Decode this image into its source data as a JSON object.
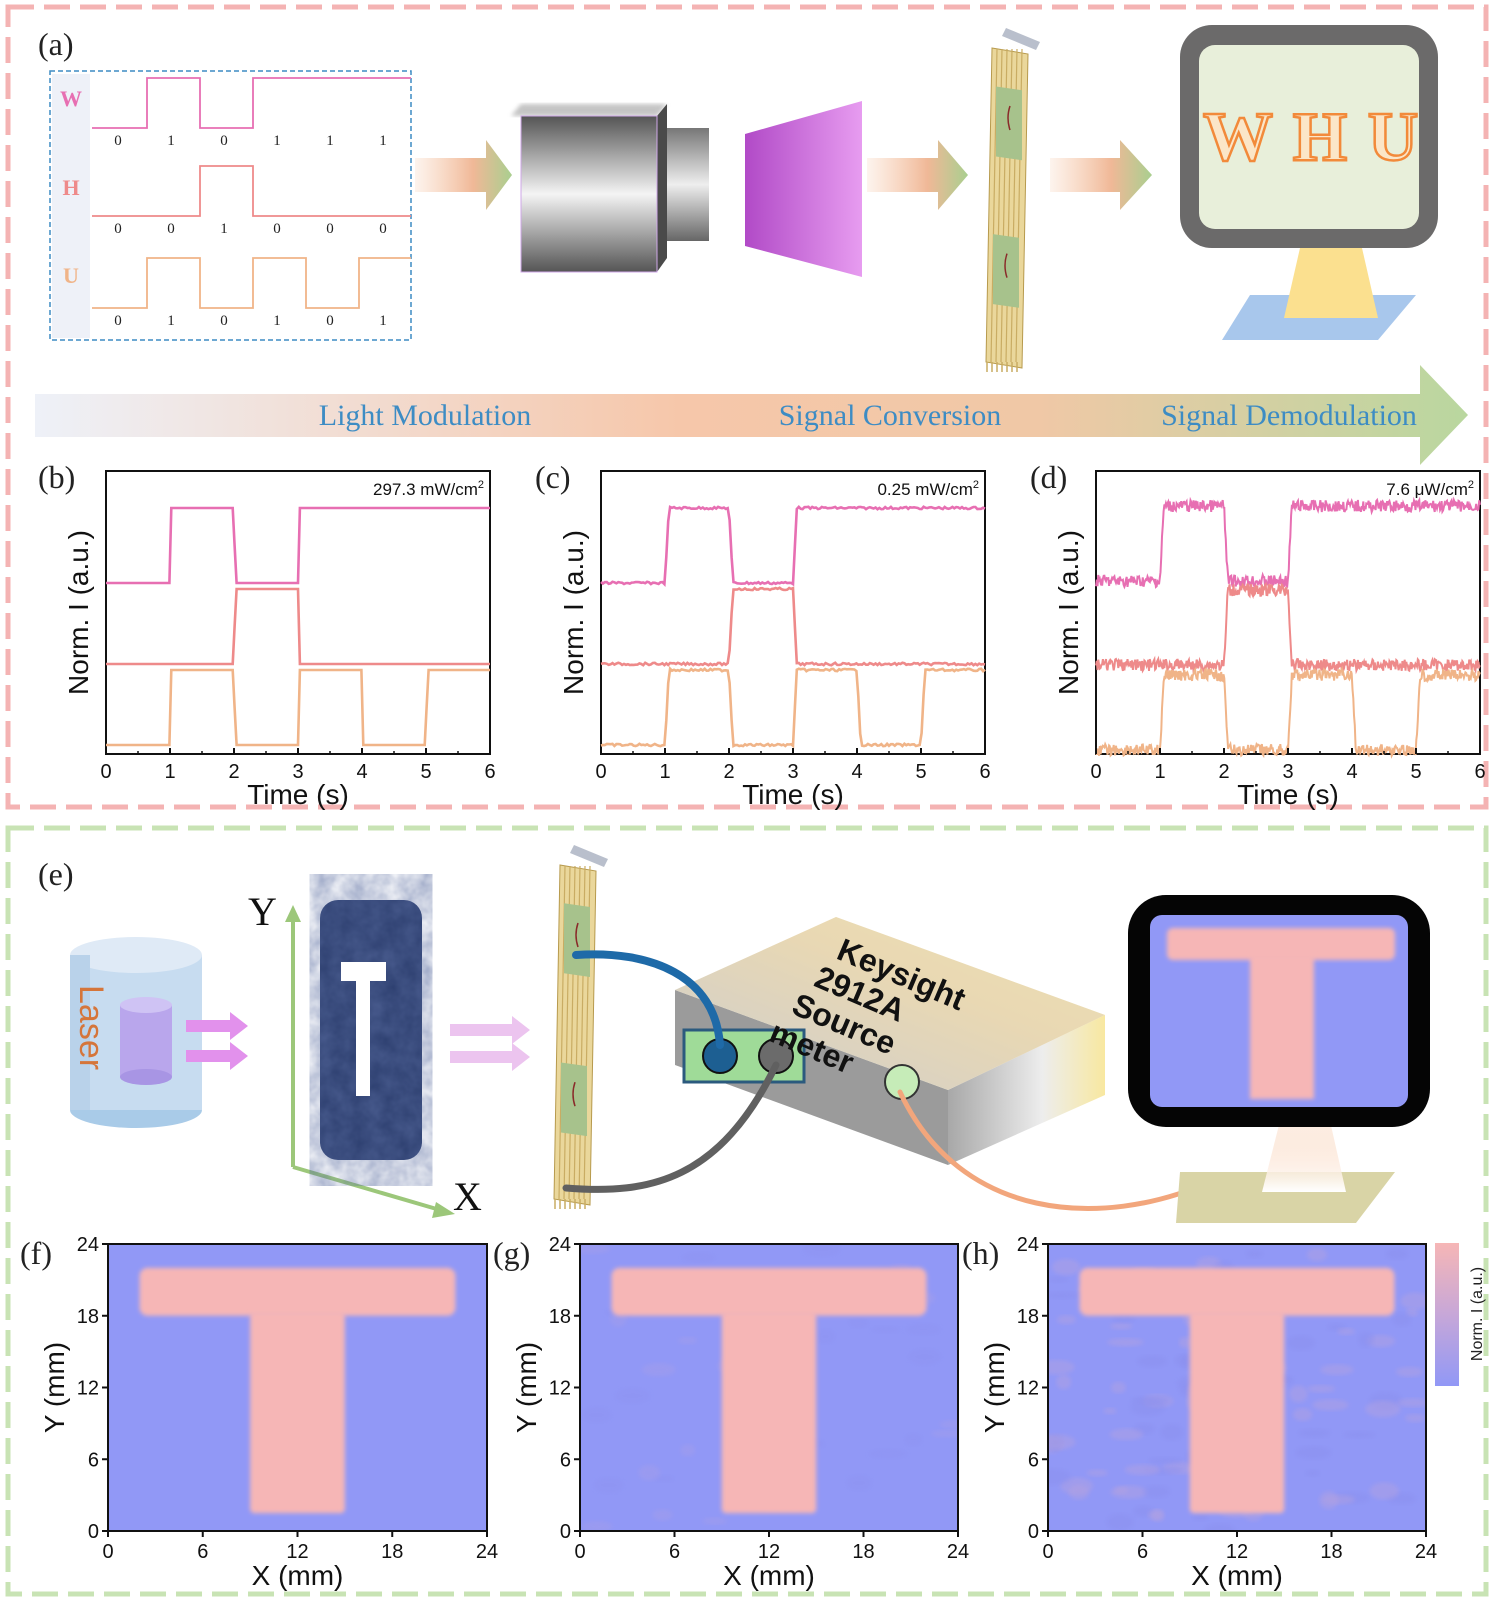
{
  "panel_labels": {
    "a": "(a)",
    "b": "(b)",
    "c": "(c)",
    "d": "(d)",
    "e": "(e)",
    "f": "(f)",
    "g": "(g)",
    "h": "(h)"
  },
  "encoding": {
    "rows": [
      {
        "letter": "W",
        "bits": [
          "0",
          "1",
          "0",
          "1",
          "1",
          "1"
        ],
        "color": "#e76fb2"
      },
      {
        "letter": "H",
        "bits": [
          "0",
          "0",
          "1",
          "0",
          "0",
          "0"
        ],
        "color": "#ee8a8a"
      },
      {
        "letter": "U",
        "bits": [
          "0",
          "1",
          "0",
          "1",
          "0",
          "1"
        ],
        "color": "#f0b488"
      }
    ]
  },
  "monitor_text": [
    "W",
    "H",
    "U"
  ],
  "stages": [
    "Light Modulation",
    "Signal Conversion",
    "Signal Demodulation"
  ],
  "setup": {
    "laser_label": "Laser",
    "axis_y": "Y",
    "axis_x": "X",
    "meter_lines": [
      "Keysight",
      "2912A",
      "Source",
      "meter"
    ]
  },
  "colors": {
    "top_border": "#f4b3b3",
    "bottom_border": "#c8e3b4",
    "trace_w": "#e76fb2",
    "trace_h": "#ee8a8a",
    "trace_u": "#f0b488",
    "map_bg": "#9198f6",
    "map_t": "#f6b6b6",
    "stage_text": "#3d8cc4"
  },
  "chart_data": [
    {
      "panel": "b",
      "type": "line",
      "annotation": "297.3 mW/cm2",
      "xlabel": "Time (s)",
      "ylabel": "Norm. I (a.u.)",
      "xlim": [
        0,
        6
      ],
      "xticks": [
        "0",
        "1",
        "2",
        "3",
        "4",
        "5",
        "6"
      ],
      "series": [
        {
          "x": [
            0,
            1,
            2,
            3,
            6
          ],
          "values": [
            0,
            1,
            0,
            1,
            1
          ]
        },
        {
          "x": [
            0,
            2,
            3,
            6
          ],
          "values": [
            0,
            1,
            0,
            0
          ]
        },
        {
          "x": [
            0,
            1,
            2,
            3,
            4,
            5,
            6
          ],
          "values": [
            0,
            1,
            0,
            1,
            0,
            1,
            1
          ]
        }
      ]
    },
    {
      "panel": "c",
      "type": "line",
      "annotation": "0.25 mW/cm2",
      "xlabel": "Time (s)",
      "ylabel": "Norm. I (a.u.)",
      "xlim": [
        0,
        6
      ],
      "xticks": [
        "0",
        "1",
        "2",
        "3",
        "4",
        "5",
        "6"
      ],
      "series": [
        {
          "x": [
            0,
            1,
            2,
            3,
            6
          ],
          "values": [
            0,
            1,
            0,
            1,
            1
          ]
        },
        {
          "x": [
            0,
            2,
            3,
            6
          ],
          "values": [
            0,
            1,
            0,
            0
          ]
        },
        {
          "x": [
            0,
            1,
            2,
            3,
            4,
            5,
            6
          ],
          "values": [
            0,
            1,
            0,
            1,
            0,
            1,
            1
          ]
        }
      ]
    },
    {
      "panel": "d",
      "type": "line",
      "annotation": "7.6 μW/cm2",
      "xlabel": "Time (s)",
      "ylabel": "Norm. I (a.u.)",
      "xlim": [
        0,
        6
      ],
      "xticks": [
        "0",
        "1",
        "2",
        "3",
        "4",
        "5",
        "6"
      ],
      "series": [
        {
          "x": [
            0,
            1,
            2,
            3,
            6
          ],
          "values": [
            0,
            1,
            0,
            1,
            1
          ]
        },
        {
          "x": [
            0,
            2,
            3,
            6
          ],
          "values": [
            0,
            1,
            0,
            0
          ]
        },
        {
          "x": [
            0,
            1,
            2,
            3,
            4,
            5,
            6
          ],
          "values": [
            0,
            1,
            0,
            1,
            0,
            1,
            1
          ]
        }
      ]
    },
    {
      "panel": "f",
      "type": "heatmap",
      "xlabel": "X (mm)",
      "ylabel": "Y (mm)",
      "xlim": [
        0,
        24
      ],
      "ylim": [
        0,
        24
      ],
      "xticks": [
        "0",
        "6",
        "12",
        "18",
        "24"
      ],
      "yticks": [
        "0",
        "6",
        "12",
        "18",
        "24"
      ],
      "t_bar": {
        "x": [
          2,
          22
        ],
        "y": [
          18,
          22
        ]
      },
      "t_stem": {
        "x": [
          9,
          15
        ],
        "y": [
          1.5,
          18
        ]
      }
    },
    {
      "panel": "g",
      "type": "heatmap",
      "xlabel": "X (mm)",
      "ylabel": "Y (mm)",
      "xlim": [
        0,
        24
      ],
      "ylim": [
        0,
        24
      ],
      "xticks": [
        "0",
        "6",
        "12",
        "18",
        "24"
      ],
      "yticks": [
        "0",
        "6",
        "12",
        "18",
        "24"
      ],
      "t_bar": {
        "x": [
          2,
          22
        ],
        "y": [
          18,
          22
        ]
      },
      "t_stem": {
        "x": [
          9,
          15
        ],
        "y": [
          1.5,
          18
        ]
      }
    },
    {
      "panel": "h",
      "type": "heatmap",
      "xlabel": "X (mm)",
      "ylabel": "Y (mm)",
      "xlim": [
        0,
        24
      ],
      "ylim": [
        0,
        24
      ],
      "xticks": [
        "0",
        "6",
        "12",
        "18",
        "24"
      ],
      "yticks": [
        "0",
        "6",
        "12",
        "18",
        "24"
      ],
      "t_bar": {
        "x": [
          2,
          22
        ],
        "y": [
          18,
          22
        ]
      },
      "t_stem": {
        "x": [
          9,
          15
        ],
        "y": [
          1.5,
          18
        ]
      }
    }
  ],
  "colorbar_label": "Norm. I (a.u.)"
}
